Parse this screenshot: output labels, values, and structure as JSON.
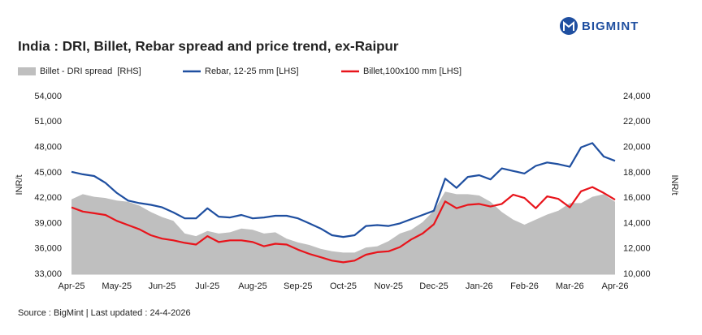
{
  "logo": "BIGMINT",
  "chart_data": {
    "type": "line",
    "title": "India : DRI, Billet, Rebar spread and price trend, ex-Raipur",
    "y_label": "INR/t",
    "y2_label": "INR/t",
    "source": "Source : BigMint | Last updated : 24-4-2026",
    "x": [
      0,
      0.25,
      0.5,
      0.75,
      1,
      1.25,
      1.5,
      1.75,
      2,
      2.25,
      2.5,
      2.75,
      3,
      3.25,
      3.5,
      3.75,
      4,
      4.25,
      4.5,
      4.75,
      5,
      5.25,
      5.5,
      5.75,
      6,
      6.25,
      6.5,
      6.75,
      7,
      7.25,
      7.5,
      7.75,
      8,
      8.25,
      8.5,
      8.75,
      9,
      9.25,
      9.5,
      9.75,
      10,
      10.25,
      10.5,
      10.75,
      11,
      11.25,
      11.5,
      11.75,
      12
    ],
    "xlim": [
      0,
      12
    ],
    "xticks": [
      {
        "value": 0,
        "label": "Apr-25"
      },
      {
        "value": 1,
        "label": "May-25"
      },
      {
        "value": 2,
        "label": "Jun-25"
      },
      {
        "value": 3,
        "label": "Jul-25"
      },
      {
        "value": 4,
        "label": "Aug-25"
      },
      {
        "value": 5,
        "label": "Sep-25"
      },
      {
        "value": 6,
        "label": "Oct-25"
      },
      {
        "value": 7,
        "label": "Nov-25"
      },
      {
        "value": 8,
        "label": "Dec-25"
      },
      {
        "value": 9,
        "label": "Jan-26"
      },
      {
        "value": 10,
        "label": "Feb-26"
      },
      {
        "value": 11,
        "label": "Mar-26"
      },
      {
        "value": 12,
        "label": "Apr-26"
      }
    ],
    "ylim": [
      33000,
      54000
    ],
    "yticks": [
      {
        "value": 33000,
        "label": "33,000"
      },
      {
        "value": 36000,
        "label": "36,000"
      },
      {
        "value": 39000,
        "label": "39,000"
      },
      {
        "value": 42000,
        "label": "42,000"
      },
      {
        "value": 45000,
        "label": "45,000"
      },
      {
        "value": 48000,
        "label": "48,000"
      },
      {
        "value": 51000,
        "label": "51,000"
      },
      {
        "value": 54000,
        "label": "54,000"
      }
    ],
    "y2lim": [
      10000,
      24000
    ],
    "y2ticks": [
      {
        "value": 10000,
        "label": "10,000"
      },
      {
        "value": 12000,
        "label": "12,000"
      },
      {
        "value": 14000,
        "label": "14,000"
      },
      {
        "value": 16000,
        "label": "16,000"
      },
      {
        "value": 18000,
        "label": "18,000"
      },
      {
        "value": 20000,
        "label": "20,000"
      },
      {
        "value": 22000,
        "label": "22,000"
      },
      {
        "value": 24000,
        "label": "24,000"
      }
    ],
    "legend": "top",
    "series": [
      {
        "name": "Billet - DRI spread  [RHS]",
        "type": "area",
        "axis": "y2",
        "color": "#bfbfbf",
        "values": [
          15900,
          16300,
          16100,
          16000,
          15800,
          15700,
          15400,
          14900,
          14500,
          14200,
          13200,
          13000,
          13400,
          13200,
          13300,
          13600,
          13500,
          13200,
          13300,
          12800,
          12500,
          12300,
          12000,
          11800,
          11700,
          11700,
          12100,
          12200,
          12600,
          13200,
          13500,
          14100,
          15000,
          16500,
          16300,
          16300,
          16200,
          15700,
          14900,
          14300,
          13900,
          14300,
          14700,
          15000,
          15600,
          15600,
          16100,
          16300,
          15700
        ]
      },
      {
        "name": "Rebar, 12-25 mm [LHS]",
        "type": "line",
        "color": "#1f4fa0",
        "values": [
          45100,
          44800,
          44600,
          43800,
          42600,
          41700,
          41400,
          41200,
          40900,
          40300,
          39600,
          39600,
          40800,
          39800,
          39700,
          40000,
          39600,
          39700,
          39900,
          39900,
          39600,
          39000,
          38400,
          37600,
          37400,
          37600,
          38700,
          38800,
          38700,
          39000,
          39500,
          40000,
          40500,
          44300,
          43200,
          44500,
          44700,
          44200,
          45500,
          45200,
          44900,
          45800,
          46200,
          46000,
          45700,
          48000,
          48500,
          46900,
          46400
        ]
      },
      {
        "name": "Billet,100x100 mm [LHS]",
        "type": "line",
        "color": "#e8141b",
        "values": [
          40900,
          40400,
          40200,
          40000,
          39300,
          38800,
          38300,
          37600,
          37200,
          37000,
          36700,
          36500,
          37500,
          36800,
          37000,
          37000,
          36800,
          36300,
          36600,
          36500,
          35900,
          35400,
          35000,
          34600,
          34400,
          34600,
          35300,
          35600,
          35700,
          36200,
          37100,
          37800,
          38900,
          41600,
          40800,
          41200,
          41300,
          41000,
          41300,
          42400,
          42000,
          40800,
          42200,
          41900,
          40900,
          42800,
          43300,
          42600,
          41800
        ]
      }
    ]
  }
}
